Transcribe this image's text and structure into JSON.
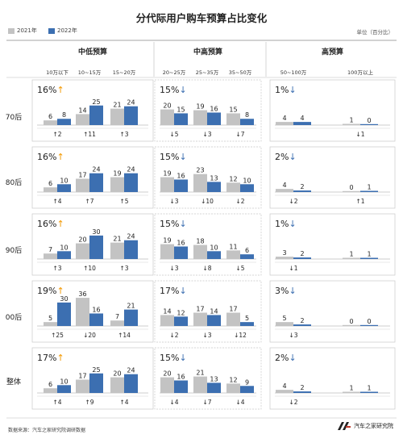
{
  "chart_data": {
    "type": "bar",
    "title": "分代际用户购车预算占比变化",
    "unit": "单位（百分比）",
    "legend": [
      "2021年",
      "2022年"
    ],
    "colors": {
      "y2021": "#c3c3c3",
      "y2022": "#3c6fb1",
      "up_arrow": "#f39800",
      "down_arrow": "#3c6fb1"
    },
    "segments": [
      {
        "name": "中低预算",
        "categories": [
          "10万以下",
          "10~15万",
          "15~20万"
        ]
      },
      {
        "name": "中高预算",
        "categories": [
          "20~25万",
          "25~35万",
          "35~50万"
        ]
      },
      {
        "name": "高预算",
        "categories": [
          "50~100万",
          "100万以上"
        ]
      }
    ],
    "rows": [
      {
        "label": "70后",
        "groups": [
          {
            "share": "16%",
            "dir": "up",
            "bars": [
              [
                6,
                8
              ],
              [
                14,
                25
              ],
              [
                21,
                24
              ]
            ],
            "changes": [
              [
                "up",
                "2"
              ],
              [
                "up",
                "11"
              ],
              [
                "up",
                "3"
              ]
            ]
          },
          {
            "share": "15%",
            "dir": "down",
            "bars": [
              [
                20,
                15
              ],
              [
                19,
                16
              ],
              [
                15,
                8
              ]
            ],
            "changes": [
              [
                "down",
                "5"
              ],
              [
                "down",
                "3"
              ],
              [
                "down",
                "7"
              ]
            ]
          },
          {
            "share": "1%",
            "dir": "down",
            "bars": [
              [
                4,
                4
              ],
              [
                1,
                0
              ]
            ],
            "changes": [
              [
                "",
                ""
              ],
              [
                "down",
                "1"
              ]
            ]
          }
        ]
      },
      {
        "label": "80后",
        "groups": [
          {
            "share": "16%",
            "dir": "up",
            "bars": [
              [
                6,
                10
              ],
              [
                17,
                24
              ],
              [
                19,
                24
              ]
            ],
            "changes": [
              [
                "up",
                "4"
              ],
              [
                "up",
                "7"
              ],
              [
                "up",
                "5"
              ]
            ]
          },
          {
            "share": "15%",
            "dir": "down",
            "bars": [
              [
                19,
                16
              ],
              [
                23,
                13
              ],
              [
                12,
                10
              ]
            ],
            "changes": [
              [
                "down",
                "3"
              ],
              [
                "down",
                "10"
              ],
              [
                "down",
                "2"
              ]
            ]
          },
          {
            "share": "2%",
            "dir": "down",
            "bars": [
              [
                4,
                2
              ],
              [
                0,
                1
              ]
            ],
            "changes": [
              [
                "down",
                "2"
              ],
              [
                "up",
                "1"
              ]
            ]
          }
        ]
      },
      {
        "label": "90后",
        "groups": [
          {
            "share": "16%",
            "dir": "up",
            "bars": [
              [
                7,
                10
              ],
              [
                20,
                30
              ],
              [
                21,
                24
              ]
            ],
            "changes": [
              [
                "up",
                "3"
              ],
              [
                "up",
                "10"
              ],
              [
                "up",
                "3"
              ]
            ]
          },
          {
            "share": "15%",
            "dir": "down",
            "bars": [
              [
                19,
                16
              ],
              [
                18,
                10
              ],
              [
                11,
                6
              ]
            ],
            "changes": [
              [
                "down",
                "3"
              ],
              [
                "down",
                "8"
              ],
              [
                "down",
                "5"
              ]
            ]
          },
          {
            "share": "1%",
            "dir": "down",
            "bars": [
              [
                3,
                2
              ],
              [
                1,
                1
              ]
            ],
            "changes": [
              [
                "down",
                "1"
              ],
              [
                "",
                ""
              ]
            ]
          }
        ]
      },
      {
        "label": "00后",
        "groups": [
          {
            "share": "19%",
            "dir": "up",
            "bars": [
              [
                5,
                30
              ],
              [
                36,
                16
              ],
              [
                7,
                21
              ]
            ],
            "changes": [
              [
                "up",
                "25"
              ],
              [
                "down",
                "20"
              ],
              [
                "up",
                "14"
              ]
            ]
          },
          {
            "share": "17%",
            "dir": "down",
            "bars": [
              [
                14,
                12
              ],
              [
                17,
                14
              ],
              [
                17,
                5
              ]
            ],
            "changes": [
              [
                "down",
                "2"
              ],
              [
                "down",
                "3"
              ],
              [
                "down",
                "12"
              ]
            ]
          },
          {
            "share": "3%",
            "dir": "down",
            "bars": [
              [
                5,
                2
              ],
              [
                0,
                0
              ]
            ],
            "changes": [
              [
                "down",
                "3"
              ],
              [
                "",
                ""
              ]
            ]
          }
        ]
      },
      {
        "label": "整体",
        "groups": [
          {
            "share": "17%",
            "dir": "up",
            "bars": [
              [
                6,
                10
              ],
              [
                17,
                25
              ],
              [
                20,
                24
              ]
            ],
            "changes": [
              [
                "up",
                "4"
              ],
              [
                "up",
                "9"
              ],
              [
                "up",
                "4"
              ]
            ]
          },
          {
            "share": "15%",
            "dir": "down",
            "bars": [
              [
                20,
                16
              ],
              [
                21,
                13
              ],
              [
                12,
                9
              ]
            ],
            "changes": [
              [
                "down",
                "4"
              ],
              [
                "down",
                "7"
              ],
              [
                "down",
                "4"
              ]
            ]
          },
          {
            "share": "2%",
            "dir": "down",
            "bars": [
              [
                4,
                2
              ],
              [
                1,
                1
              ]
            ],
            "changes": [
              [
                "down",
                "2"
              ],
              [
                "",
                ""
              ]
            ]
          }
        ]
      }
    ]
  },
  "footer": {
    "source": "数据来源：汽车之家研究院调研数据",
    "brand": "汽车之家研究院"
  }
}
